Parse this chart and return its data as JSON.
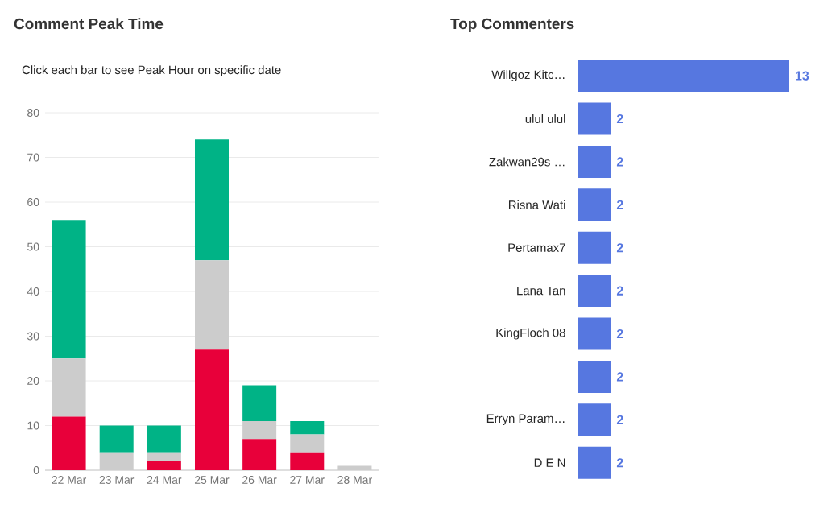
{
  "chart_data": [
    {
      "type": "bar",
      "title": "Comment Peak Time",
      "subtitle": "Click each bar to see Peak Hour on specific date",
      "stacked": true,
      "grid": "y",
      "categories": [
        "22 Mar",
        "23 Mar",
        "24 Mar",
        "25 Mar",
        "26 Mar",
        "27 Mar",
        "28 Mar"
      ],
      "series": [
        {
          "color": "#e8003a",
          "values": [
            12,
            0,
            2,
            27,
            7,
            4,
            0
          ]
        },
        {
          "color": "#cccccc",
          "values": [
            13,
            4,
            2,
            20,
            4,
            4,
            1
          ]
        },
        {
          "color": "#00b386",
          "values": [
            31,
            6,
            6,
            27,
            8,
            3,
            0
          ]
        }
      ],
      "ylim": [
        0,
        80
      ],
      "yticks": [
        0,
        10,
        20,
        30,
        40,
        50,
        60,
        70,
        80
      ]
    },
    {
      "type": "bar",
      "title": "Top Commenters",
      "orientation": "horizontal",
      "data_labels": true,
      "tick_labels": "y",
      "color": "#5677e0",
      "categories": [
        "Willgoz Kitc…",
        "ulul ulul",
        "Zakwan29s …",
        "Risna Wati",
        "Pertamax7",
        "Lana Tan",
        "KingFloch 08",
        null,
        "Erryn Param…",
        "D E N"
      ],
      "values": [
        13,
        2,
        2,
        2,
        2,
        2,
        2,
        2,
        2,
        2
      ]
    }
  ]
}
